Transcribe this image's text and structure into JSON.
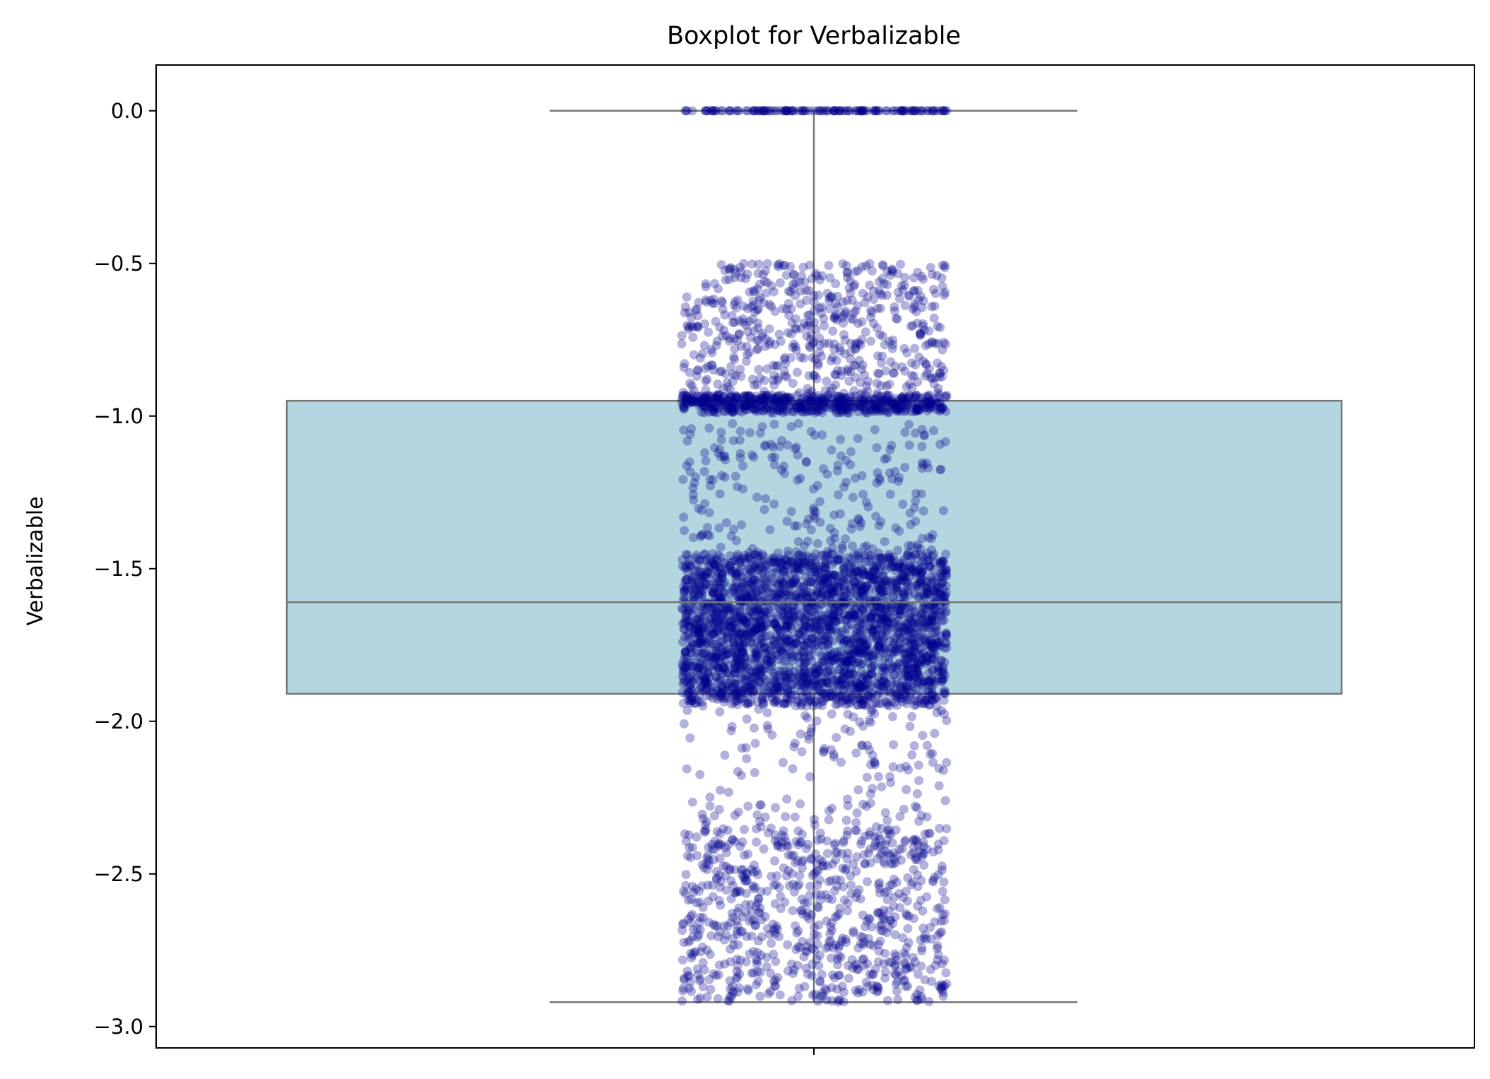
{
  "chart_data": {
    "type": "box",
    "title": "Boxplot for Verbalizable",
    "xlabel": "",
    "ylabel": "Verbalizable",
    "ylim": [
      -3.07,
      0.15
    ],
    "yticks": [
      0.0,
      -0.5,
      -1.0,
      -1.5,
      -2.0,
      -2.5,
      -3.0
    ],
    "ytick_labels": [
      "0.0",
      "−0.5",
      "−1.0",
      "−1.5",
      "−2.0",
      "−2.5",
      "−3.0"
    ],
    "grid": false,
    "legend": "none",
    "box": {
      "whisker_high": 0.0,
      "q3": -0.95,
      "median": -1.61,
      "q1": -1.91,
      "whisker_low": -2.92
    },
    "strip_points": {
      "description_free": true,
      "clusters": [
        {
          "y_min": 0.0,
          "y_max": 0.0,
          "count": 140
        },
        {
          "y_min": -0.98,
          "y_max": -0.5,
          "count": 620
        },
        {
          "y_min": -0.99,
          "y_max": -0.93,
          "count": 500
        },
        {
          "y_min": -1.45,
          "y_max": -1.02,
          "count": 230
        },
        {
          "y_min": -1.95,
          "y_max": -1.45,
          "count": 2600
        },
        {
          "y_min": -2.4,
          "y_max": -1.96,
          "count": 170
        },
        {
          "y_min": -2.92,
          "y_max": -2.35,
          "count": 750
        }
      ]
    },
    "colors": {
      "box_fill": "#b4d6e0",
      "box_edge": "#767676",
      "points": "#00008b"
    }
  }
}
